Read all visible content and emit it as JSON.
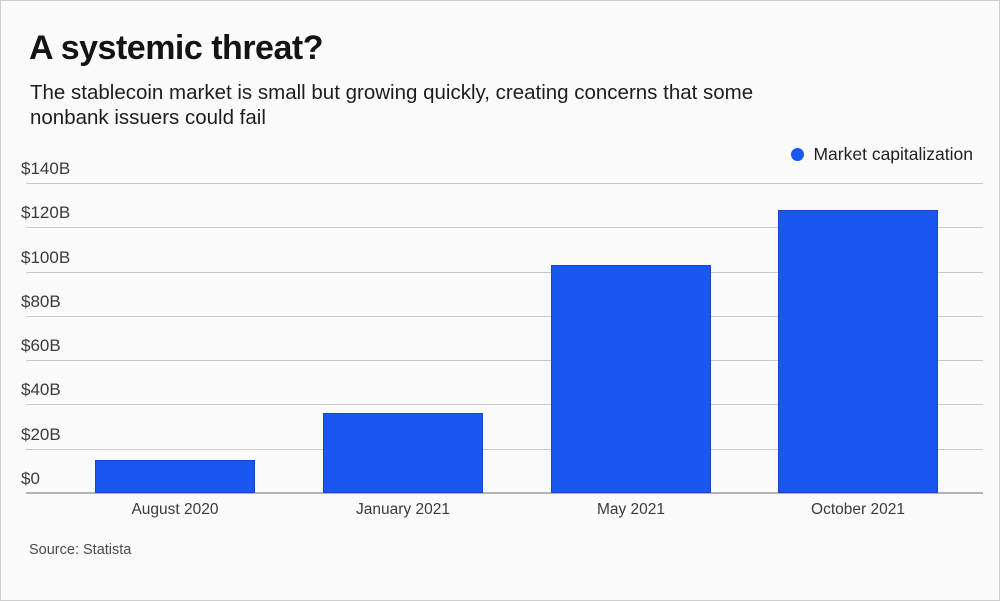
{
  "header": {
    "title": "A systemic threat?",
    "subtitle_lines": [
      "The stablecoin market is small but growing quickly, creating concerns that some",
      "nonbank issuers could fail"
    ]
  },
  "legend": {
    "label": "Market capitalization",
    "dot_color": "#1a56f0"
  },
  "footer": {
    "source": "Source: Statista"
  },
  "chart_data": {
    "type": "bar",
    "title": "A systemic threat?",
    "subtitle": "The stablecoin market is small but growing quickly, creating concerns that some nonbank issuers could fail",
    "categories": [
      "August 2020",
      "January 2021",
      "May 2021",
      "October 2021"
    ],
    "series": [
      {
        "name": "Market capitalization",
        "values": [
          15,
          36,
          103,
          128
        ]
      }
    ],
    "unit": "USD billions",
    "ylim": [
      0,
      140
    ],
    "ytick_values": [
      0,
      20,
      40,
      60,
      80,
      100,
      120,
      140
    ],
    "ytick_labels": [
      "$0",
      "$20B",
      "$40B",
      "$60B",
      "$80B",
      "$100B",
      "$120B",
      "$140B"
    ],
    "grid": "horizontal",
    "legend_position": "top-right",
    "bar_color": "#1a56f0",
    "source": "Source: Statista"
  }
}
